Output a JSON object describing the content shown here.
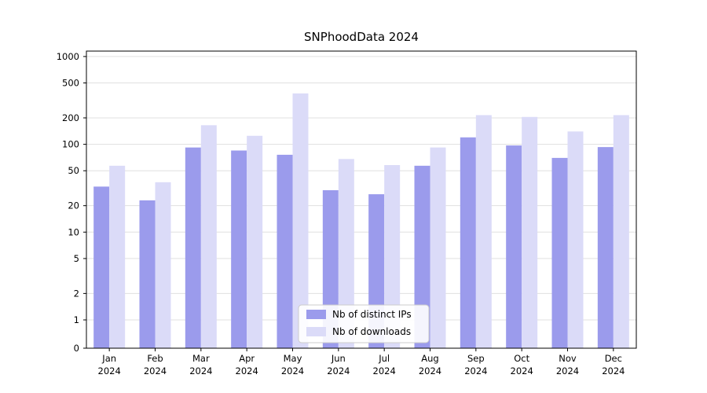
{
  "title": "SNPhoodData 2024",
  "chart_data": {
    "type": "bar",
    "scale": "symlog",
    "title": "SNPhoodData 2024",
    "xlabel": "",
    "ylabel": "",
    "grid": true,
    "legend_position": "lower center",
    "categories": [
      "Jan",
      "Feb",
      "Mar",
      "Apr",
      "May",
      "Jun",
      "Jul",
      "Aug",
      "Sep",
      "Oct",
      "Nov",
      "Dec"
    ],
    "year": "2024",
    "yticks": [
      0,
      1,
      2,
      5,
      10,
      20,
      50,
      100,
      200,
      500,
      1000
    ],
    "ylim": [
      0,
      1200
    ],
    "series": [
      {
        "name": "Nb of distinct IPs",
        "color": "#9b9bec",
        "values": [
          33,
          23,
          92,
          85,
          76,
          30,
          27,
          57,
          120,
          97,
          70,
          93
        ]
      },
      {
        "name": "Nb of downloads",
        "color": "#dbdbf8",
        "values": [
          57,
          37,
          165,
          125,
          380,
          68,
          58,
          92,
          215,
          205,
          140,
          215
        ]
      }
    ]
  },
  "colors": {
    "grid": "#e0e0e0",
    "spine": "#000000",
    "text": "#000000",
    "legend_border": "#cccccc",
    "legend_bg": "#ffffff"
  }
}
